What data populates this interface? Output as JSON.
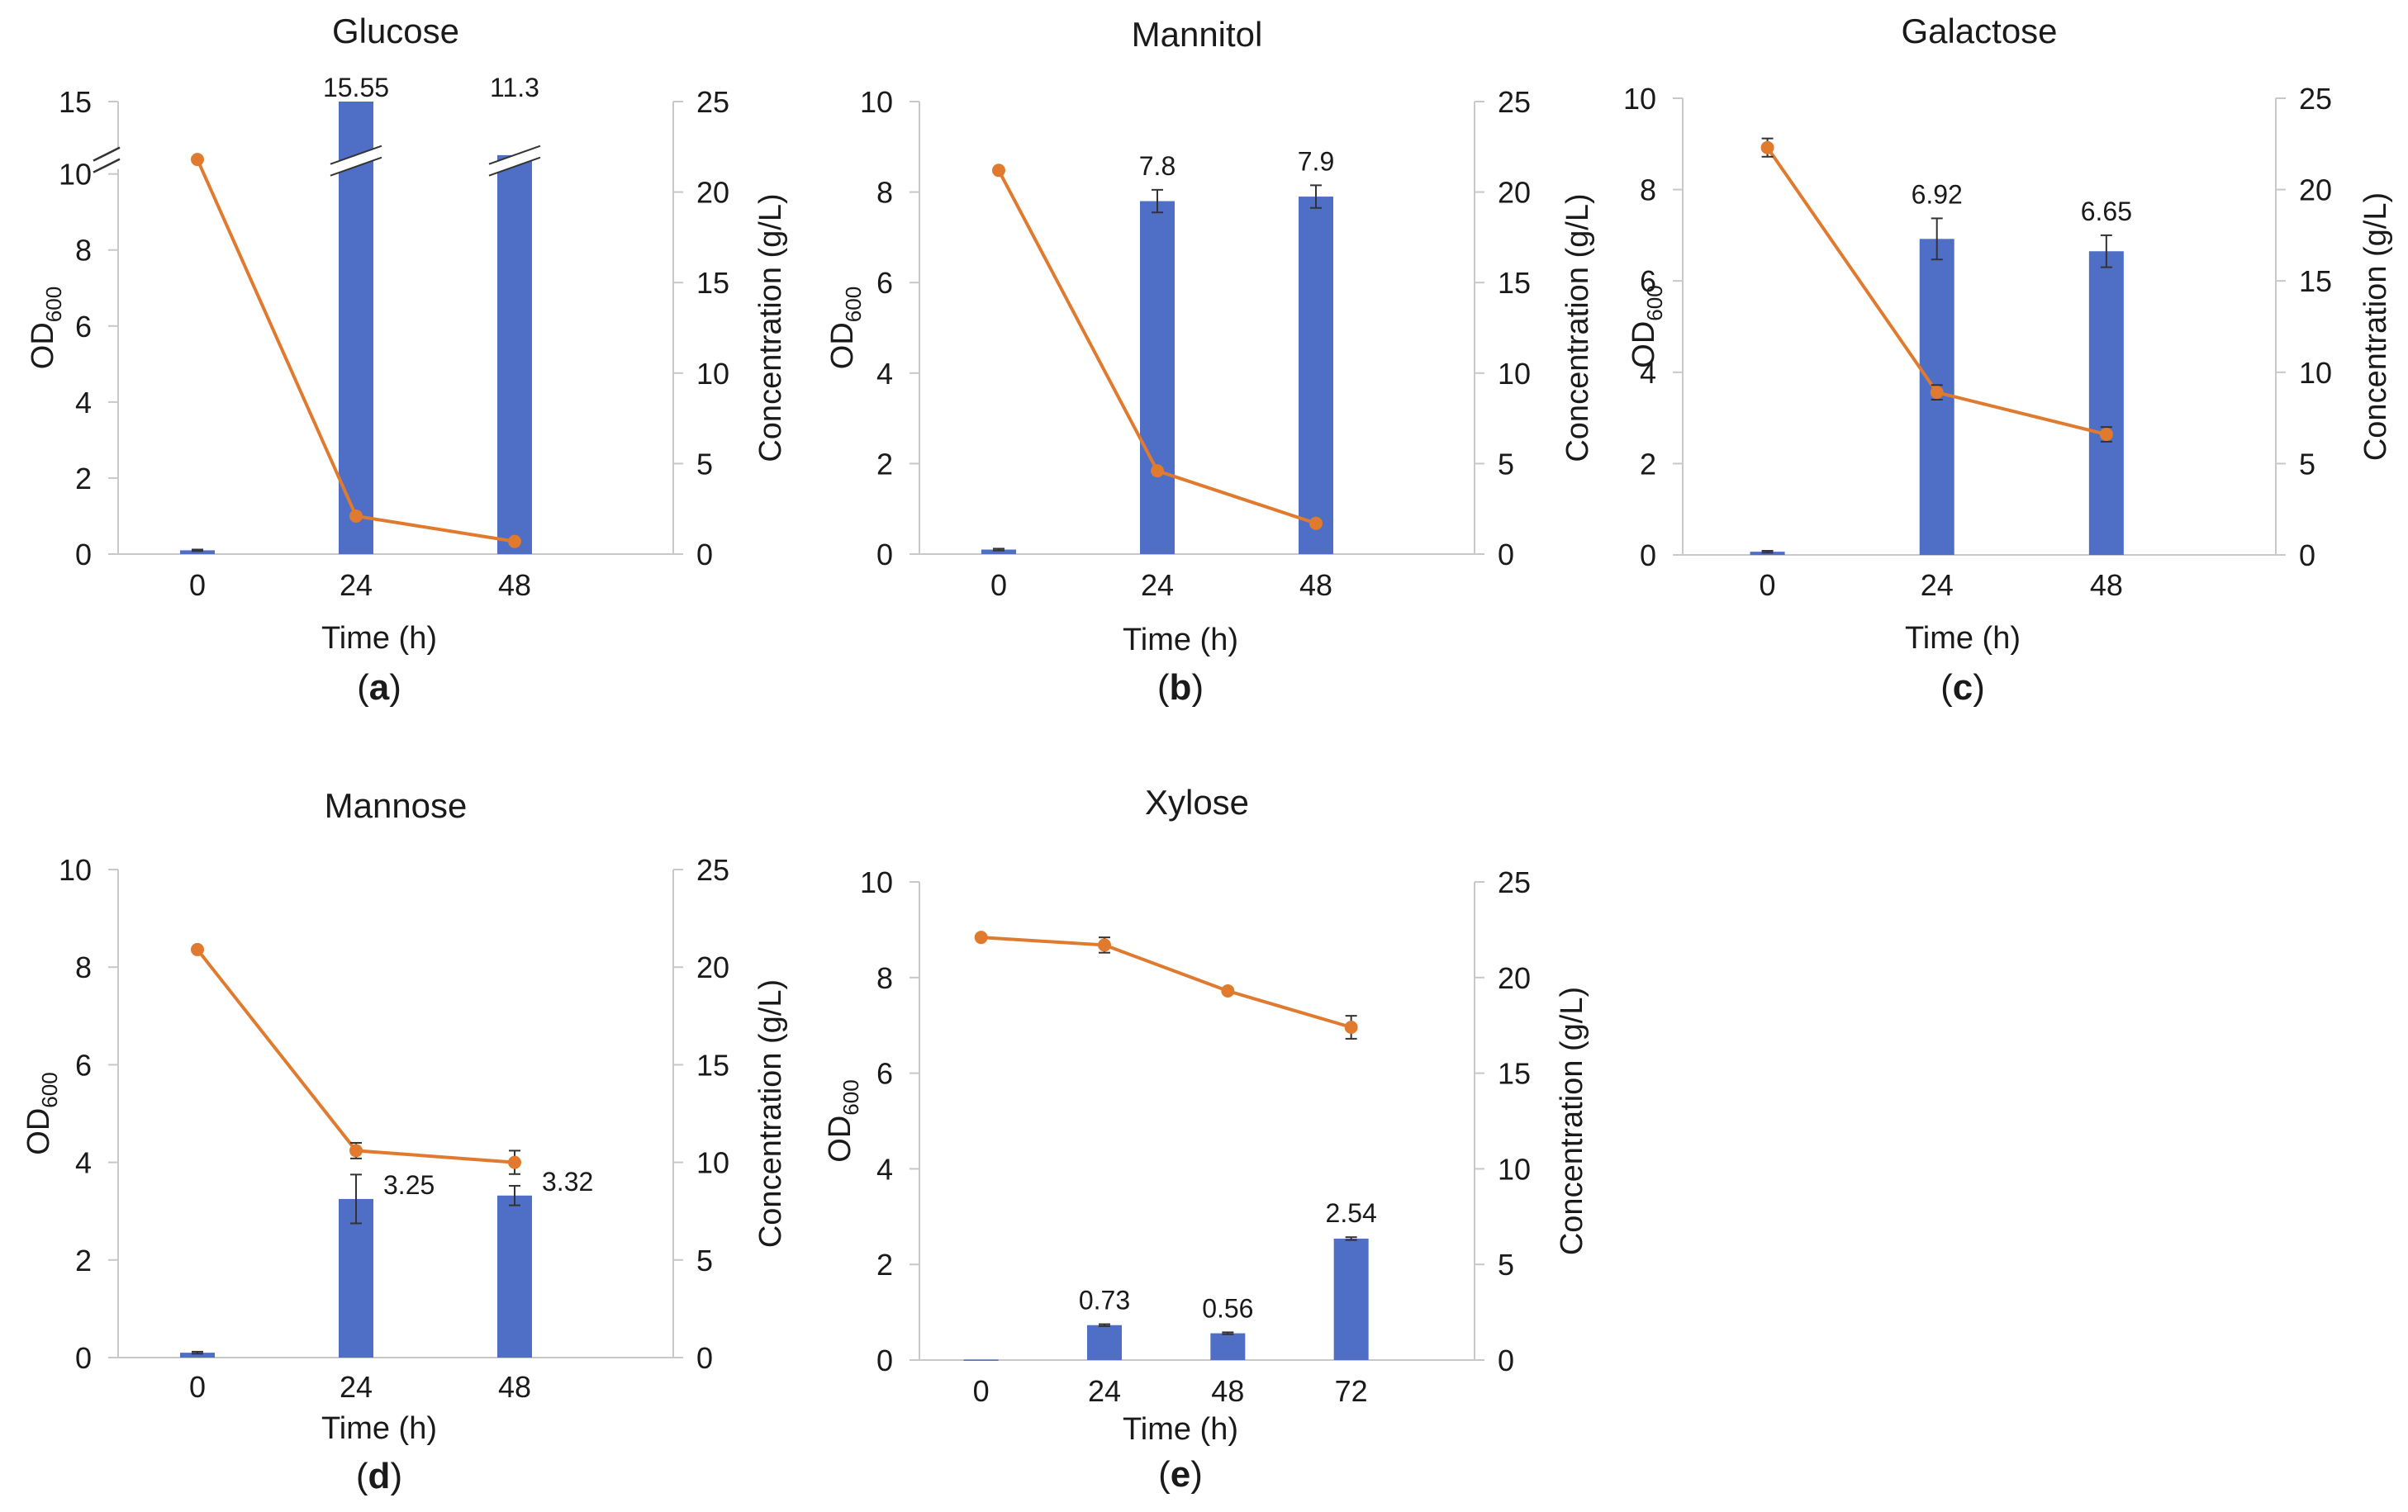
{
  "chart_data": [
    {
      "type": "bar+line",
      "panel_label": {
        "pre": "(",
        "letter": "a",
        "post": ")"
      },
      "title": "Glucose",
      "x": [
        "0",
        "24",
        "48"
      ],
      "xlabel": "Time (h)",
      "ylabel_left": {
        "main": "OD",
        "sub": "600"
      },
      "ylabel_right": "Concentration (g/L)",
      "ylim_left": [
        0,
        15
      ],
      "left_ticks": [
        "0",
        "2",
        "4",
        "6",
        "8",
        "10",
        "15"
      ],
      "axis_break": {
        "from": 10,
        "to": 15
      },
      "ylim_right": [
        0,
        25
      ],
      "right_ticks": [
        "0",
        "5",
        "10",
        "15",
        "20",
        "25"
      ],
      "series": [
        {
          "name": "OD600",
          "kind": "bar",
          "color": "#4f6fc6",
          "values": [
            0.1,
            15.55,
            11.3
          ],
          "errors": [
            0.02,
            0.3,
            0.3
          ],
          "labels": [
            "",
            "15.55",
            "11.3"
          ]
        },
        {
          "name": "Concentration",
          "kind": "line",
          "color": "#e07a2e",
          "values": [
            21.8,
            2.1,
            0.7
          ],
          "errors": [
            0,
            0,
            0
          ]
        }
      ]
    },
    {
      "type": "bar+line",
      "panel_label": {
        "pre": "(",
        "letter": "b",
        "post": ")"
      },
      "title": "Mannitol",
      "x": [
        "0",
        "24",
        "48"
      ],
      "xlabel": "Time (h)",
      "ylabel_left": {
        "main": "OD",
        "sub": "600"
      },
      "ylabel_right": "Concentration (g/L)",
      "ylim_left": [
        0,
        10
      ],
      "left_ticks": [
        "0",
        "2",
        "4",
        "6",
        "8",
        "10"
      ],
      "ylim_right": [
        0,
        25
      ],
      "right_ticks": [
        "0",
        "5",
        "10",
        "15",
        "20",
        "25"
      ],
      "series": [
        {
          "name": "OD600",
          "kind": "bar",
          "color": "#4f6fc6",
          "values": [
            0.1,
            7.8,
            7.9
          ],
          "errors": [
            0.02,
            0.25,
            0.25
          ],
          "labels": [
            "",
            "7.8",
            "7.9"
          ]
        },
        {
          "name": "Concentration",
          "kind": "line",
          "color": "#e07a2e",
          "values": [
            21.2,
            4.6,
            1.7
          ],
          "errors": [
            0,
            0,
            0
          ]
        }
      ]
    },
    {
      "type": "bar+line",
      "panel_label": {
        "pre": "(",
        "letter": "c",
        "post": ")"
      },
      "title": "Galactose",
      "x": [
        "0",
        "24",
        "48"
      ],
      "xlabel": "Time (h)",
      "ylabel_left": {
        "main": "OD",
        "sub": "600"
      },
      "ylabel_right": "Concentration (g/L)",
      "ylim_left": [
        0,
        10
      ],
      "left_ticks": [
        "0",
        "2",
        "4",
        "6",
        "8",
        "10"
      ],
      "ylim_right": [
        0,
        25
      ],
      "right_ticks": [
        "0",
        "5",
        "10",
        "15",
        "20",
        "25"
      ],
      "series": [
        {
          "name": "OD600",
          "kind": "bar",
          "color": "#4f6fc6",
          "values": [
            0.07,
            6.92,
            6.65
          ],
          "errors": [
            0.02,
            0.45,
            0.35
          ],
          "labels": [
            "",
            "6.92",
            "6.65"
          ]
        },
        {
          "name": "Concentration",
          "kind": "line",
          "color": "#e07a2e",
          "values": [
            22.3,
            8.9,
            6.6
          ],
          "errors": [
            0.5,
            0.4,
            0.4
          ]
        }
      ]
    },
    {
      "type": "bar+line",
      "panel_label": {
        "pre": "(",
        "letter": "d",
        "post": ")"
      },
      "title": "Mannose",
      "x": [
        "0",
        "24",
        "48"
      ],
      "xlabel": "Time (h)",
      "ylabel_left": {
        "main": "OD",
        "sub": "600"
      },
      "ylabel_right": "Concentration (g/L)",
      "ylim_left": [
        0,
        10
      ],
      "left_ticks": [
        "0",
        "2",
        "4",
        "6",
        "8",
        "10"
      ],
      "ylim_right": [
        0,
        25
      ],
      "right_ticks": [
        "0",
        "5",
        "10",
        "15",
        "20",
        "25"
      ],
      "series": [
        {
          "name": "OD600",
          "kind": "bar",
          "color": "#4f6fc6",
          "values": [
            0.1,
            3.25,
            3.32
          ],
          "errors": [
            0.02,
            0.5,
            0.2
          ],
          "labels": [
            "",
            "3.25",
            "3.32"
          ]
        },
        {
          "name": "Concentration",
          "kind": "line",
          "color": "#e07a2e",
          "values": [
            20.9,
            10.6,
            10.0
          ],
          "errors": [
            0,
            0.4,
            0.6
          ]
        }
      ]
    },
    {
      "type": "bar+line",
      "panel_label": {
        "pre": "(",
        "letter": "e",
        "post": ")"
      },
      "title": "Xylose",
      "x": [
        "0",
        "24",
        "48",
        "72"
      ],
      "xlabel": "Time (h)",
      "ylabel_left": {
        "main": "OD",
        "sub": "600"
      },
      "ylabel_right": "Concentration (g/L)",
      "ylim_left": [
        0,
        10
      ],
      "left_ticks": [
        "0",
        "2",
        "4",
        "6",
        "8",
        "10"
      ],
      "ylim_right": [
        0,
        25
      ],
      "right_ticks": [
        "0",
        "5",
        "10",
        "15",
        "20",
        "25"
      ],
      "series": [
        {
          "name": "OD600",
          "kind": "bar",
          "color": "#4f6fc6",
          "values": [
            0.01,
            0.73,
            0.56,
            2.54
          ],
          "errors": [
            0,
            0.02,
            0.02,
            0.03
          ],
          "labels": [
            "",
            "0.73",
            "0.56",
            "2.54"
          ]
        },
        {
          "name": "Concentration",
          "kind": "line",
          "color": "#e07a2e",
          "values": [
            22.1,
            21.7,
            19.3,
            17.4
          ],
          "errors": [
            0,
            0.4,
            0,
            0.6
          ]
        }
      ]
    }
  ]
}
